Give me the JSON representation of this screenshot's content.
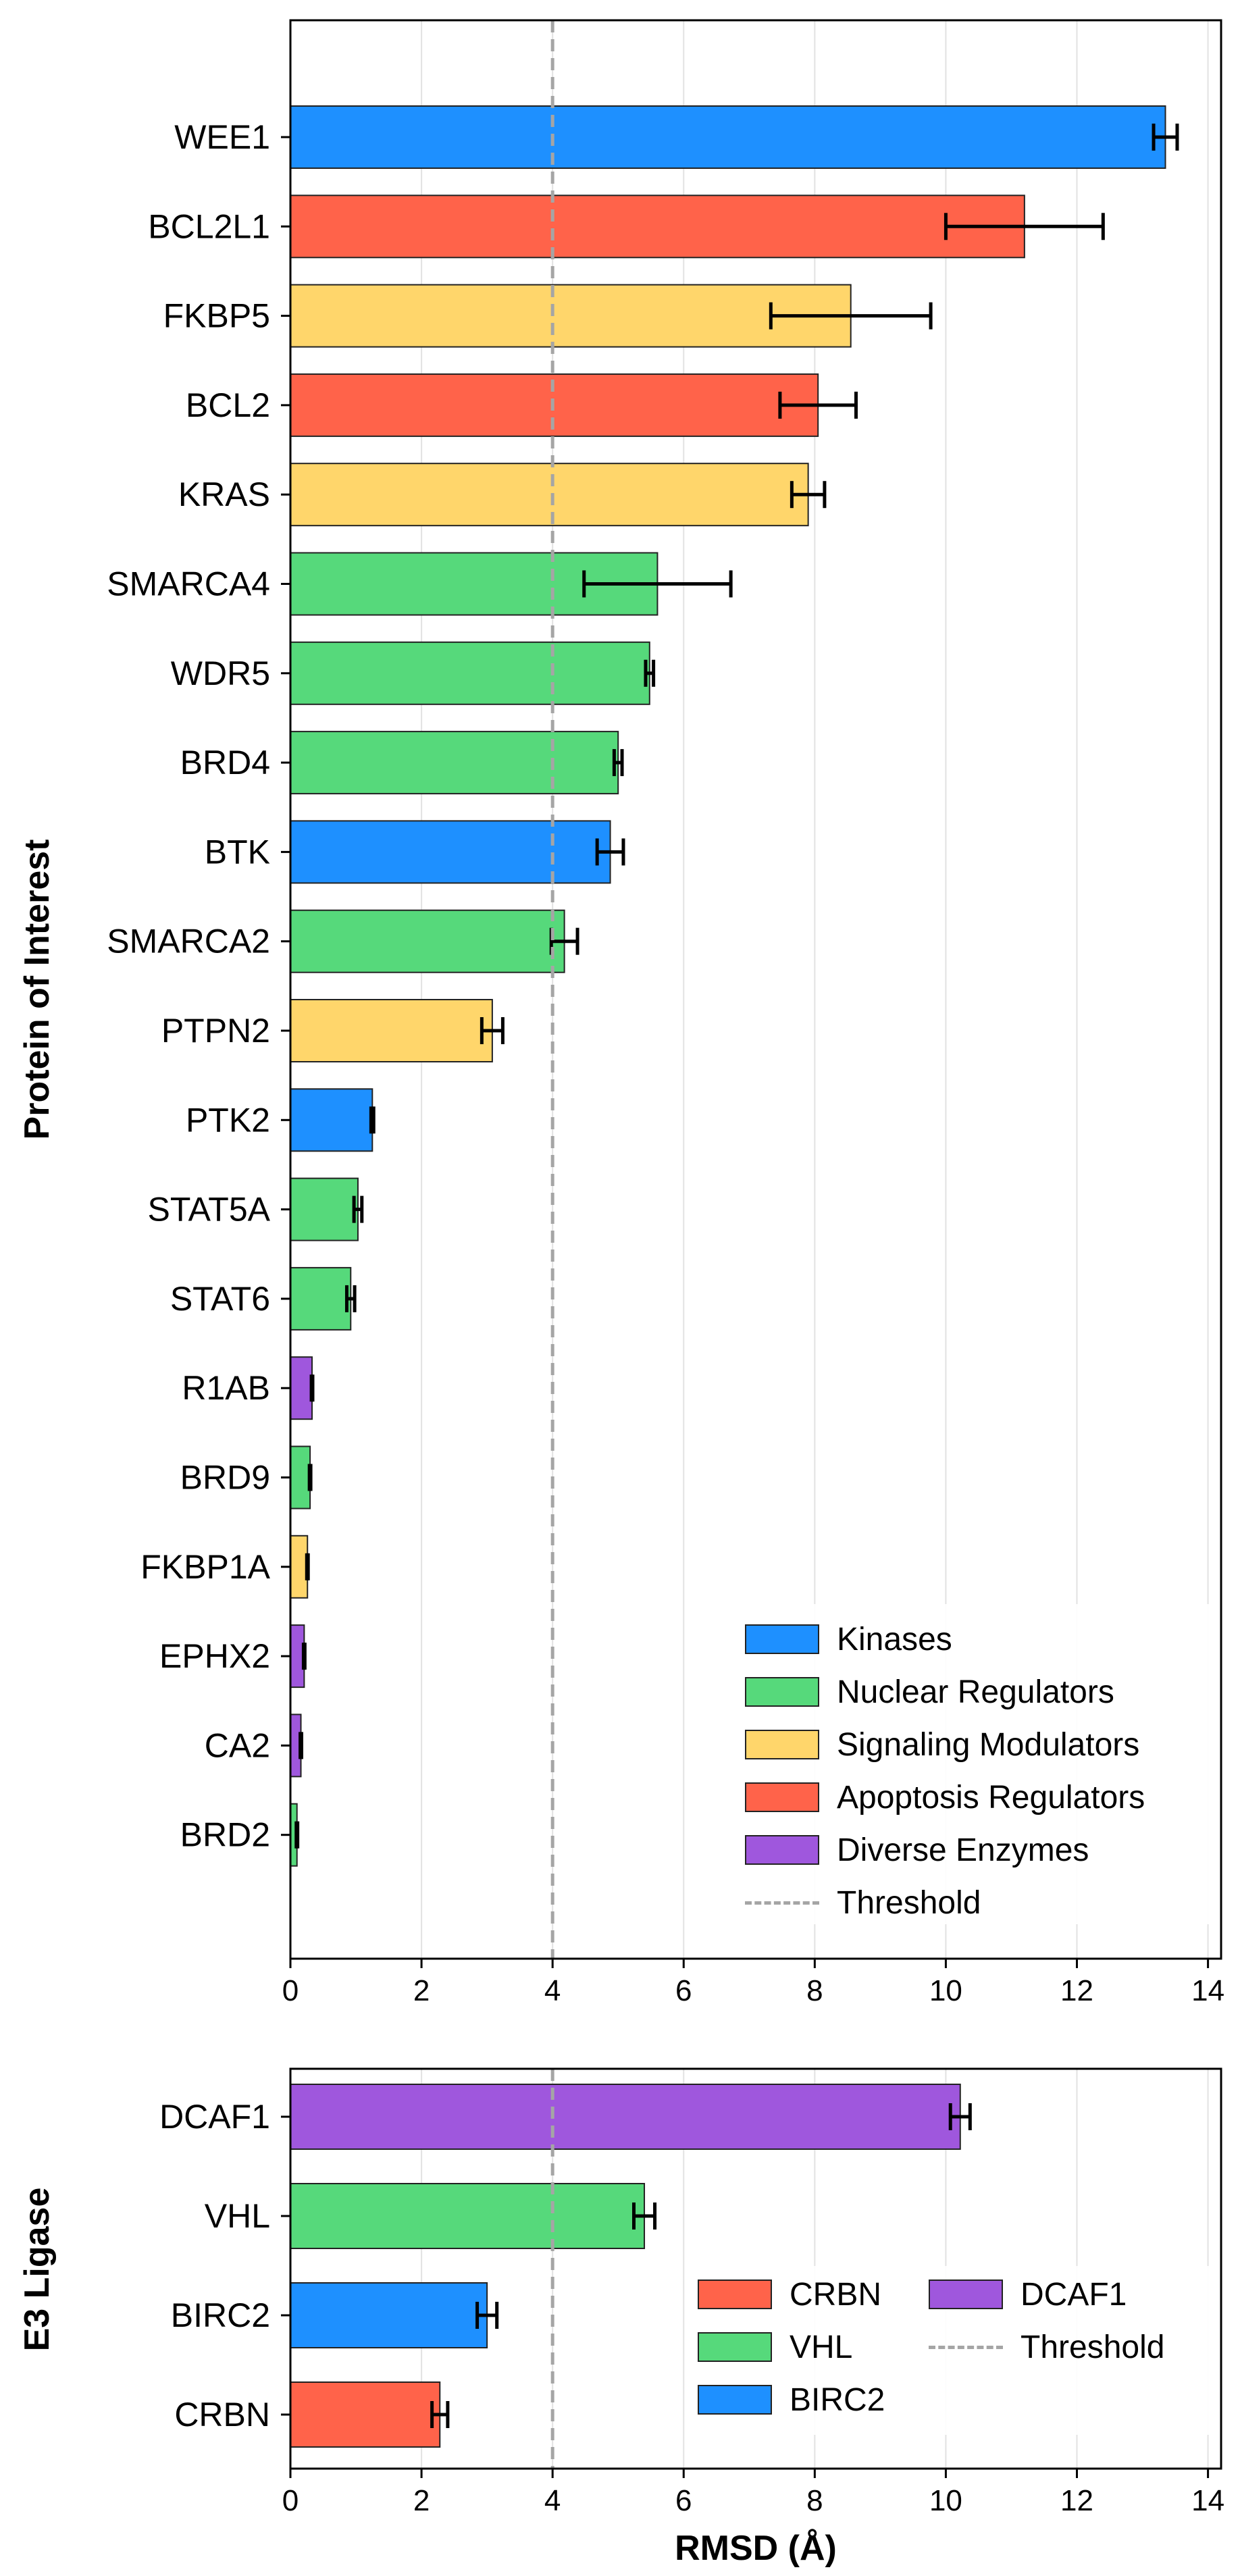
{
  "colors": {
    "kinases": "#1e90ff",
    "nuclear": "#56d97b",
    "signaling": "#ffd66b",
    "apoptosis": "#ff634a",
    "enzymes": "#9f57dd",
    "threshold": "#a5a5a5"
  },
  "chart_data": [
    {
      "type": "bar",
      "orientation": "horizontal",
      "ylabel": "Protein of Interest",
      "xlabel": "",
      "xlim": [
        0,
        14.2
      ],
      "xticks": [
        "0",
        "2",
        "4",
        "6",
        "8",
        "10",
        "12",
        "14"
      ],
      "grid": "vertical",
      "threshold": 4,
      "legend_position": "lower-right",
      "legend": [
        {
          "label": "Kinases",
          "group": "kinases"
        },
        {
          "label": "Nuclear Regulators",
          "group": "nuclear"
        },
        {
          "label": "Signaling Modulators",
          "group": "signaling"
        },
        {
          "label": "Apoptosis Regulators",
          "group": "apoptosis"
        },
        {
          "label": "Diverse Enzymes",
          "group": "enzymes"
        },
        {
          "label": "Threshold",
          "group": "threshold",
          "style": "dashed"
        }
      ],
      "categories": [
        "WEE1",
        "BCL2L1",
        "FKBP5",
        "BCL2",
        "KRAS",
        "SMARCA4",
        "WDR5",
        "BRD4",
        "BTK",
        "SMARCA2",
        "PTPN2",
        "PTK2",
        "STAT5A",
        "STAT6",
        "R1AB",
        "BRD9",
        "FKBP1A",
        "EPHX2",
        "CA2",
        "BRD2"
      ],
      "values": [
        13.35,
        11.2,
        8.55,
        8.05,
        7.9,
        5.6,
        5.48,
        5.0,
        4.88,
        4.18,
        3.08,
        1.25,
        1.03,
        0.92,
        0.33,
        0.3,
        0.26,
        0.21,
        0.16,
        0.1
      ],
      "errors": [
        0.18,
        1.2,
        1.22,
        0.58,
        0.25,
        1.12,
        0.06,
        0.06,
        0.2,
        0.2,
        0.16,
        0.02,
        0.06,
        0.06,
        0.01,
        0.01,
        0.01,
        0.01,
        0.01,
        0.01
      ],
      "groups": [
        "kinases",
        "apoptosis",
        "signaling",
        "apoptosis",
        "signaling",
        "nuclear",
        "nuclear",
        "nuclear",
        "kinases",
        "nuclear",
        "signaling",
        "kinases",
        "nuclear",
        "nuclear",
        "enzymes",
        "nuclear",
        "signaling",
        "enzymes",
        "enzymes",
        "nuclear"
      ]
    },
    {
      "type": "bar",
      "orientation": "horizontal",
      "ylabel": "E3 Ligase",
      "xlabel": "RMSD (Å)",
      "xlim": [
        0,
        14.2
      ],
      "xticks": [
        "0",
        "2",
        "4",
        "6",
        "8",
        "10",
        "12",
        "14"
      ],
      "grid": "vertical",
      "threshold": 4,
      "legend_position": "lower-right",
      "legend": [
        {
          "label": "CRBN",
          "group": "apoptosis"
        },
        {
          "label": "VHL",
          "group": "nuclear"
        },
        {
          "label": "BIRC2",
          "group": "kinases"
        },
        {
          "label": "DCAF1",
          "group": "enzymes"
        },
        {
          "label": "Threshold",
          "group": "threshold",
          "style": "dashed"
        }
      ],
      "categories": [
        "DCAF1",
        "VHL",
        "BIRC2",
        "CRBN"
      ],
      "values": [
        10.22,
        5.4,
        3.0,
        2.28
      ],
      "errors": [
        0.15,
        0.16,
        0.15,
        0.12
      ],
      "groups": [
        "enzymes",
        "nuclear",
        "kinases",
        "apoptosis"
      ]
    }
  ]
}
